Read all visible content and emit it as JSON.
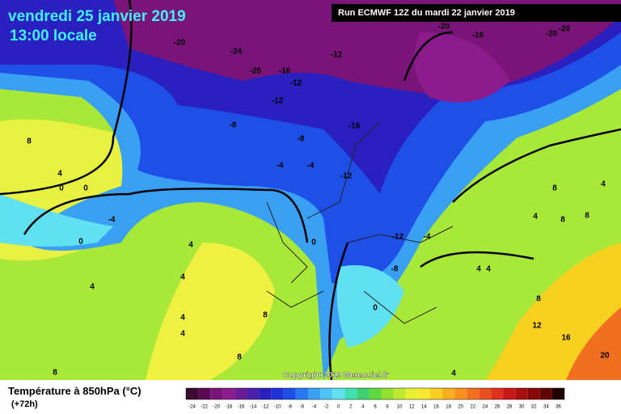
{
  "header": {
    "date": "vendredi 25 janvier 2019",
    "time": "13:00 locale",
    "run": "Run ECMWF 12Z du mardi 22 janvier 2019"
  },
  "copyright": "Copyright 2019 Meteociel.fr",
  "legend": {
    "title": "Température à 850hPa (°C)",
    "lead": "(+72h)",
    "ticks": [
      -24,
      -22,
      -20,
      -18,
      -16,
      -14,
      -12,
      -10,
      -8,
      -6,
      -4,
      -2,
      0,
      2,
      4,
      6,
      8,
      10,
      12,
      14,
      16,
      18,
      20,
      22,
      24,
      26,
      28,
      30,
      32,
      34,
      36
    ],
    "colors": [
      "#3a0a30",
      "#5a0a55",
      "#7a1478",
      "#8c1c8c",
      "#6a1e96",
      "#4a20a8",
      "#2a20c0",
      "#1e32d8",
      "#1e50e8",
      "#2a78f0",
      "#3aa0f4",
      "#50c4f4",
      "#60e0f0",
      "#40e0b0",
      "#40d070",
      "#60d840",
      "#90e030",
      "#c0e830",
      "#e8f030",
      "#f8e830",
      "#f8d020",
      "#f8b020",
      "#f89020",
      "#f07020",
      "#e85020",
      "#e03020",
      "#c81818",
      "#a81010",
      "#880808",
      "#600404",
      "#200000"
    ]
  },
  "contour_labels": [
    -20,
    -24,
    -20,
    -16,
    -12,
    -12,
    -12,
    -8,
    -8,
    -4,
    -4,
    -16,
    -12,
    8,
    4,
    0,
    0,
    -4,
    0,
    4,
    0,
    4,
    4,
    -12,
    -8,
    -4,
    4,
    4,
    0,
    8,
    4,
    4,
    8,
    8,
    4,
    -20,
    -16,
    -20,
    -20,
    8,
    4,
    4,
    8,
    8,
    8,
    12,
    16,
    20
  ]
}
